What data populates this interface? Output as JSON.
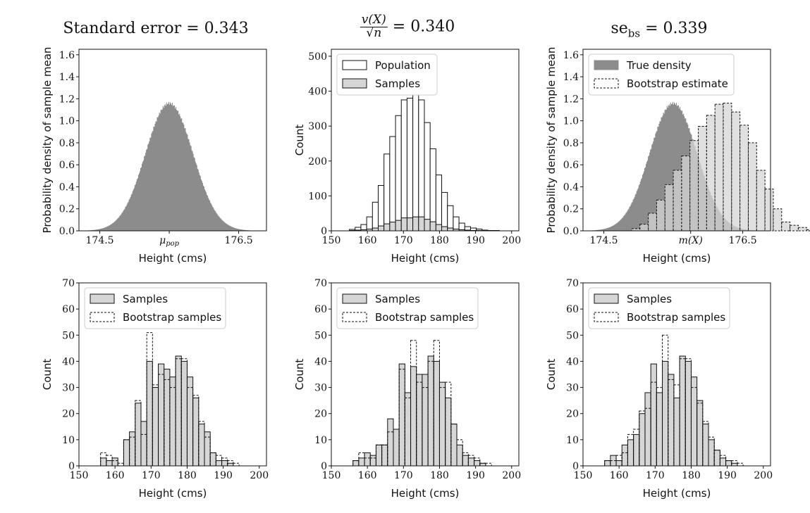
{
  "titles": {
    "panel1_text": "Standard error = 0.343",
    "panel2_num": "v(X)",
    "panel2_den": "√n",
    "panel2_value": " = 0.340",
    "panel3_se": "se",
    "panel3_sub": "bs",
    "panel3_value": " = 0.339"
  },
  "colors": {
    "dark_gray": "#8c8c8c",
    "light_gray": "#d6d6d6",
    "white": "#ffffff",
    "edge": "#111111"
  },
  "chart_data": [
    {
      "id": "p1",
      "type": "area",
      "xlabel": "Height (cms)",
      "ylabel": "Probability density of sample mean",
      "xlim": [
        174.2,
        176.9
      ],
      "ylim": [
        0,
        1.65
      ],
      "xticks": [
        174.5,
        175.5,
        176.5
      ],
      "xtick_labels": [
        "174.5",
        "μpop",
        "176.5"
      ],
      "yticks": [
        0,
        0.2,
        0.4,
        0.6,
        0.8,
        1.0,
        1.2,
        1.4,
        1.6
      ],
      "series": [
        {
          "kind": "normal-density",
          "mean": 175.5,
          "sd": 0.343,
          "peak": 1.16
        }
      ]
    },
    {
      "id": "p2",
      "type": "bar",
      "xlabel": "Height (cms)",
      "ylabel": "Count",
      "xlim": [
        150,
        202
      ],
      "ylim": [
        0,
        520
      ],
      "xticks": [
        150,
        160,
        170,
        180,
        190,
        200
      ],
      "yticks": [
        0,
        100,
        200,
        300,
        400,
        500
      ],
      "bin_start": 155,
      "bin_width": 1.6,
      "legend": [
        "Population",
        "Samples"
      ],
      "series": [
        {
          "name": "Population",
          "style": "white",
          "values": [
            4,
            10,
            18,
            40,
            82,
            130,
            220,
            270,
            330,
            375,
            380,
            400,
            375,
            310,
            235,
            160,
            110,
            72,
            40,
            22,
            12,
            8,
            5,
            2,
            1,
            1
          ]
        },
        {
          "name": "Samples",
          "style": "light",
          "values": [
            1,
            2,
            3,
            5,
            8,
            14,
            20,
            25,
            30,
            37,
            37,
            40,
            40,
            33,
            26,
            18,
            12,
            8,
            5,
            3,
            2,
            1,
            1,
            0,
            0,
            0
          ]
        }
      ]
    },
    {
      "id": "p3",
      "type": "area",
      "xlabel": "Height (cms)",
      "ylabel": "Probability density of sample mean",
      "xlim": [
        174.2,
        176.9
      ],
      "ylim": [
        0,
        1.65
      ],
      "xticks": [
        174.5,
        175.75,
        176.5
      ],
      "xtick_labels": [
        "174.5",
        "m(X)",
        "176.5"
      ],
      "yticks": [
        0,
        0.2,
        0.4,
        0.6,
        0.8,
        1.0,
        1.2,
        1.4,
        1.6
      ],
      "legend": [
        "True density",
        "Bootstrap estimate"
      ],
      "series": [
        {
          "name": "True density",
          "kind": "normal-density",
          "mean": 175.5,
          "sd": 0.343,
          "peak": 1.16
        },
        {
          "name": "Bootstrap estimate",
          "kind": "histogram",
          "bin_start": 174.9,
          "bin_width": 0.12,
          "values": [
            0.02,
            0.06,
            0.16,
            0.28,
            0.42,
            0.55,
            0.68,
            0.82,
            0.95,
            1.05,
            1.15,
            1.16,
            1.08,
            0.96,
            0.8,
            0.55,
            0.38,
            0.2,
            0.08,
            0.05,
            0.03,
            0.01
          ]
        }
      ]
    },
    {
      "id": "p4",
      "type": "bar",
      "xlabel": "Height (cms)",
      "ylabel": "Count",
      "xlim": [
        150,
        202
      ],
      "ylim": [
        0,
        70
      ],
      "xticks": [
        150,
        160,
        170,
        180,
        190,
        200
      ],
      "yticks": [
        0,
        10,
        20,
        30,
        40,
        50,
        60,
        70
      ],
      "bin_start": 156,
      "bin_width": 1.6,
      "legend": [
        "Samples",
        "Bootstrap samples"
      ],
      "series": [
        {
          "name": "Samples",
          "style": "light",
          "values": [
            3,
            2,
            3,
            0,
            10,
            13,
            24,
            17,
            40,
            30,
            39,
            37,
            34,
            42,
            40,
            34,
            26,
            16,
            13,
            5,
            2,
            2,
            1,
            0,
            0
          ]
        },
        {
          "name": "Bootstrap samples",
          "style": "dashed",
          "values": [
            5,
            4,
            2,
            1,
            10,
            11,
            25,
            12,
            51,
            31,
            35,
            33,
            30,
            41,
            41,
            30,
            27,
            17,
            11,
            5,
            4,
            3,
            2,
            1,
            0
          ]
        }
      ]
    },
    {
      "id": "p5",
      "type": "bar",
      "xlabel": "Height (cms)",
      "ylabel": "Count",
      "xlim": [
        150,
        202
      ],
      "ylim": [
        0,
        70
      ],
      "xticks": [
        150,
        160,
        170,
        180,
        190,
        200
      ],
      "yticks": [
        0,
        10,
        20,
        30,
        40,
        50,
        60,
        70
      ],
      "bin_start": 156,
      "bin_width": 1.6,
      "legend": [
        "Samples",
        "Bootstrap samples"
      ],
      "series": [
        {
          "name": "Samples",
          "style": "light",
          "values": [
            2,
            3,
            5,
            4,
            8,
            8,
            18,
            14,
            39,
            28,
            38,
            35,
            35,
            42,
            40,
            32,
            26,
            16,
            8,
            4,
            3,
            2,
            1,
            0,
            0
          ]
        },
        {
          "name": "Bootstrap samples",
          "style": "dashed",
          "values": [
            2,
            5,
            3,
            3,
            8,
            8,
            13,
            14,
            37,
            26,
            48,
            32,
            30,
            40,
            48,
            30,
            32,
            16,
            10,
            5,
            4,
            3,
            1,
            1,
            0
          ]
        }
      ]
    },
    {
      "id": "p6",
      "type": "bar",
      "xlabel": "Height (cms)",
      "ylabel": "Count",
      "xlim": [
        150,
        202
      ],
      "ylim": [
        0,
        70
      ],
      "xticks": [
        150,
        160,
        170,
        180,
        190,
        200
      ],
      "yticks": [
        0,
        10,
        20,
        30,
        40,
        50,
        60,
        70
      ],
      "bin_start": 156,
      "bin_width": 1.6,
      "legend": [
        "Samples",
        "Bootstrap samples"
      ],
      "series": [
        {
          "name": "Samples",
          "style": "light",
          "values": [
            2,
            4,
            2,
            8,
            10,
            12,
            20,
            28,
            39,
            28,
            40,
            35,
            26,
            42,
            40,
            34,
            25,
            16,
            10,
            6,
            3,
            2,
            1,
            0,
            0
          ]
        },
        {
          "name": "Bootstrap samples",
          "style": "dashed",
          "values": [
            2,
            2,
            4,
            5,
            12,
            14,
            21,
            22,
            32,
            30,
            50,
            33,
            31,
            41,
            41,
            30,
            24,
            17,
            11,
            6,
            4,
            2,
            2,
            1,
            0
          ]
        }
      ]
    }
  ]
}
